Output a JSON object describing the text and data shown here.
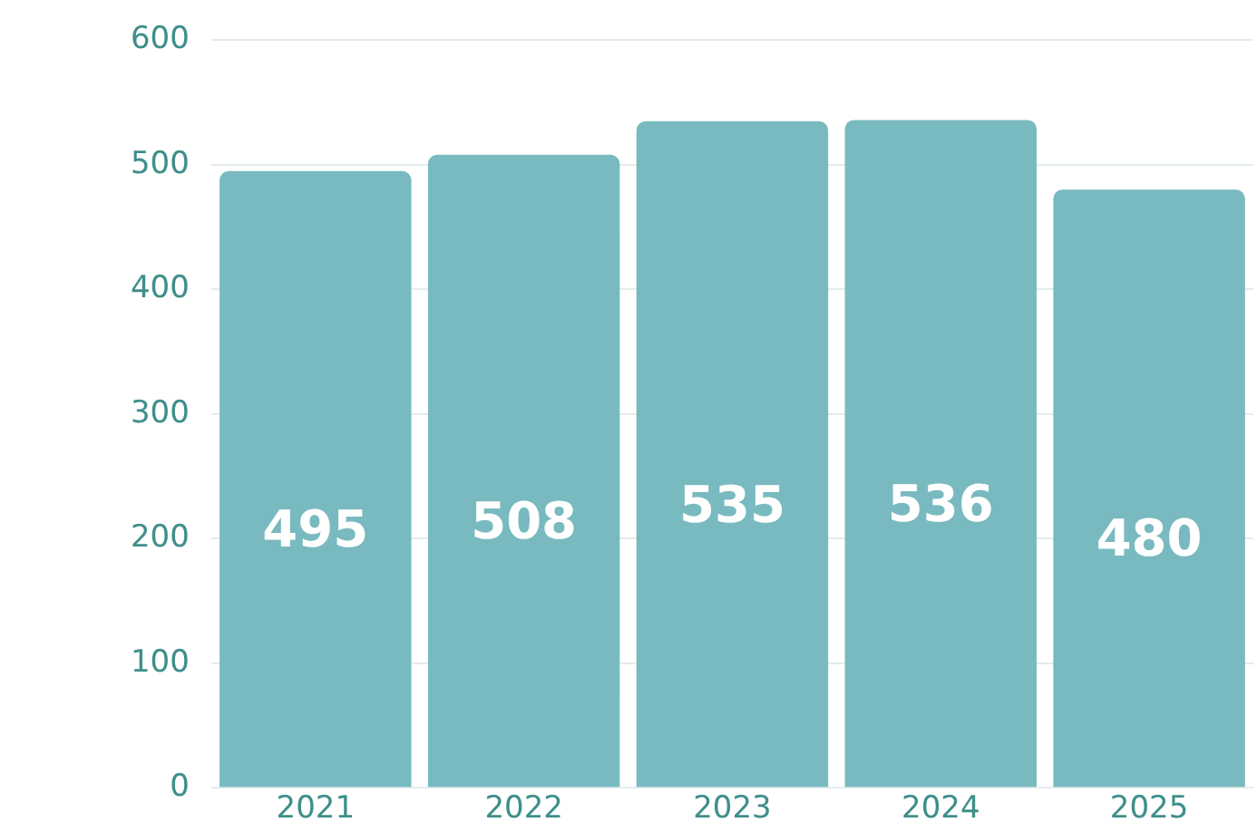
{
  "chart_data": {
    "type": "bar",
    "categories": [
      "2021",
      "2022",
      "2023",
      "2024",
      "2025"
    ],
    "values": [
      495,
      508,
      535,
      536,
      480
    ],
    "color": "#78babf",
    "ylim": [
      0,
      600
    ],
    "yticks": [
      0,
      100,
      200,
      300,
      400,
      500,
      600
    ],
    "grid": "y",
    "data_labels": true,
    "legend": false
  }
}
